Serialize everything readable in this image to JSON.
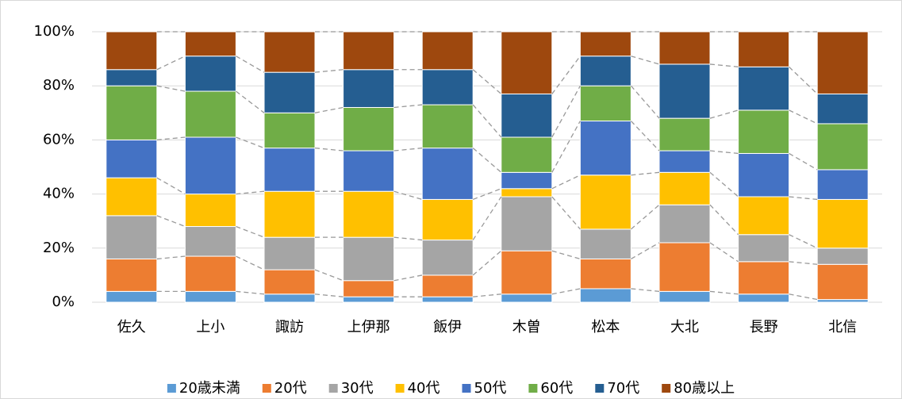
{
  "chart_data": {
    "type": "stacked_bar_100",
    "categories": [
      "佐久",
      "上小",
      "諏訪",
      "上伊那",
      "飯伊",
      "木曽",
      "松本",
      "大北",
      "長野",
      "北信"
    ],
    "series": [
      {
        "name": "20歳未満",
        "color": "#5B9BD5",
        "values": [
          4,
          4,
          3,
          2,
          2,
          3,
          5,
          4,
          3,
          1
        ]
      },
      {
        "name": "20代",
        "color": "#ED7D31",
        "values": [
          12,
          13,
          9,
          6,
          8,
          16,
          11,
          18,
          12,
          13
        ]
      },
      {
        "name": "30代",
        "color": "#A5A5A5",
        "values": [
          16,
          11,
          12,
          16,
          13,
          20,
          11,
          14,
          10,
          6
        ]
      },
      {
        "name": "40代",
        "color": "#FFC000",
        "values": [
          14,
          12,
          17,
          17,
          15,
          3,
          20,
          12,
          14,
          18
        ]
      },
      {
        "name": "50代",
        "color": "#4472C4",
        "values": [
          14,
          21,
          16,
          15,
          19,
          6,
          20,
          8,
          16,
          11
        ]
      },
      {
        "name": "60代",
        "color": "#70AD47",
        "values": [
          20,
          17,
          13,
          16,
          16,
          13,
          13,
          12,
          16,
          17
        ]
      },
      {
        "name": "70代",
        "color": "#255E91",
        "values": [
          6,
          13,
          15,
          14,
          13,
          16,
          11,
          20,
          16,
          11
        ]
      },
      {
        "name": "80歳以上",
        "color": "#9E480E",
        "values": [
          14,
          9,
          15,
          14,
          14,
          23,
          9,
          12,
          13,
          23
        ]
      }
    ],
    "ylim": [
      0,
      100
    ],
    "yticks": [
      {
        "value": 0,
        "label": "0%"
      },
      {
        "value": 20,
        "label": "20%"
      },
      {
        "value": 40,
        "label": "40%"
      },
      {
        "value": 60,
        "label": "60%"
      },
      {
        "value": 80,
        "label": "80%"
      },
      {
        "value": 100,
        "label": "100%"
      }
    ],
    "grid": true,
    "legend": "bottom"
  }
}
